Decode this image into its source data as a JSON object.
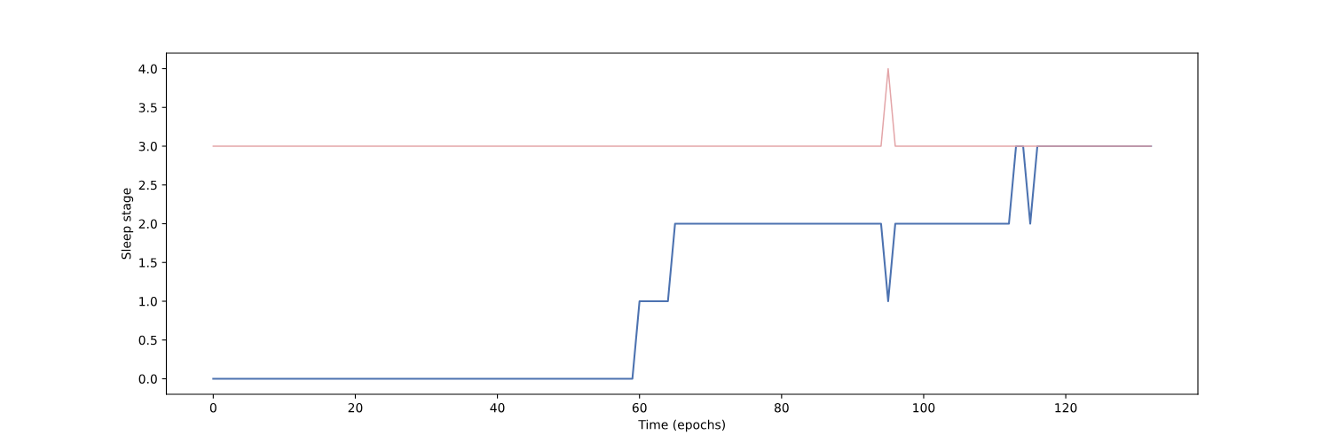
{
  "chart_data": {
    "type": "line",
    "xlabel": "Time (epochs)",
    "ylabel": "Sleep stage",
    "series": [
      {
        "color": "#e3a5a8",
        "x": [
          0,
          94,
          95,
          96,
          132
        ],
        "values": [
          3,
          3,
          4,
          3,
          3
        ]
      },
      {
        "color": "#4c72b0",
        "x": [
          0,
          59,
          60,
          64,
          65,
          94,
          95,
          96,
          112,
          113,
          114,
          115,
          116,
          132
        ],
        "values": [
          0,
          0,
          1,
          1,
          2,
          2,
          1,
          2,
          2,
          3,
          3,
          2,
          3,
          3
        ]
      }
    ],
    "xlim": [
      -6.6,
      138.6
    ],
    "xticks": [
      0,
      20,
      40,
      60,
      80,
      100,
      120
    ],
    "ylim": [
      -0.2,
      4.2
    ],
    "yticks": [
      {
        "value": 0,
        "label": "0.0"
      },
      {
        "value": 0.5,
        "label": "0.5"
      },
      {
        "value": 1,
        "label": "1.0"
      },
      {
        "value": 1.5,
        "label": "1.5"
      },
      {
        "value": 2,
        "label": "2.0"
      },
      {
        "value": 2.5,
        "label": "2.5"
      },
      {
        "value": 3,
        "label": "3.0"
      },
      {
        "value": 3.5,
        "label": "3.5"
      },
      {
        "value": 4,
        "label": "4.0"
      }
    ],
    "grid": false
  }
}
